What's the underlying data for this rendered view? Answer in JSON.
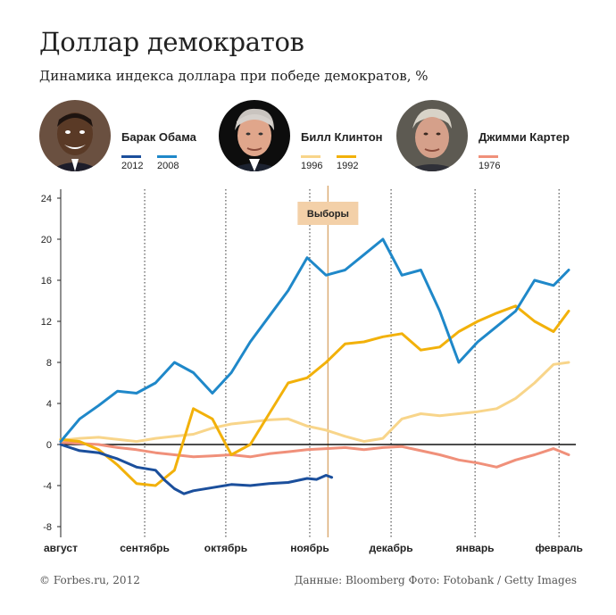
{
  "header": {
    "title": "Доллар демократов",
    "subtitle": "Динамика индекса доллара при победе демократов, %"
  },
  "people": [
    {
      "name": "Барак Обама",
      "photo": "obama-photo",
      "years": [
        {
          "label": "2012",
          "color": "#1b4f9c"
        },
        {
          "label": "2008",
          "color": "#1f88c9"
        }
      ]
    },
    {
      "name": "Билл Клинтон",
      "photo": "clinton-photo",
      "years": [
        {
          "label": "1996",
          "color": "#f8d58a"
        },
        {
          "label": "1992",
          "color": "#f2b10a"
        }
      ]
    },
    {
      "name": "Джимми Картер",
      "photo": "carter-photo",
      "years": [
        {
          "label": "1976",
          "color": "#f0907a"
        }
      ]
    }
  ],
  "footer": {
    "copyright": "© Forbes.ru, 2012",
    "source": "Данные: Bloomberg   Фото: Fotobank / Getty Images"
  },
  "chart_data": {
    "type": "line",
    "x_unit": "weeks since 1 Aug",
    "xlim": [
      0,
      26.8
    ],
    "ylim": [
      -8,
      24
    ],
    "yticks": [
      24,
      20,
      16,
      12,
      8,
      4,
      0,
      -4,
      -8
    ],
    "ytick_labels": [
      "24",
      "20",
      "16",
      "12",
      "8",
      "4",
      "0",
      "-4",
      "-8"
    ],
    "xticks": [
      {
        "label": "август",
        "x": 0
      },
      {
        "label": "сентябрь",
        "x": 4.43
      },
      {
        "label": "октябрь",
        "x": 8.71
      },
      {
        "label": "ноябрь",
        "x": 13.14
      },
      {
        "label": "декабрь",
        "x": 17.43
      },
      {
        "label": "январь",
        "x": 21.86
      },
      {
        "label": "февраль",
        "x": 26.29
      }
    ],
    "annotation": {
      "label": "Выборы",
      "x": 14.1
    },
    "series": [
      {
        "name": "1976",
        "color": "#f0907a",
        "x": [
          0,
          1,
          2,
          3,
          4,
          5,
          6,
          7,
          8,
          9,
          10,
          11,
          12,
          13,
          14,
          15,
          16,
          17,
          18,
          19,
          20,
          21,
          22,
          23,
          24,
          25,
          26,
          26.8
        ],
        "y": [
          0.2,
          0.1,
          0,
          -0.3,
          -0.5,
          -0.8,
          -1,
          -1.2,
          -1.1,
          -1,
          -1.2,
          -0.9,
          -0.7,
          -0.5,
          -0.4,
          -0.3,
          -0.5,
          -0.3,
          -0.2,
          -0.6,
          -1,
          -1.5,
          -1.8,
          -2.2,
          -1.5,
          -1,
          -0.4,
          -1
        ]
      },
      {
        "name": "1996",
        "color": "#f8d58a",
        "x": [
          0,
          1,
          2,
          3,
          4,
          5,
          6,
          7,
          8,
          9,
          10,
          11,
          12,
          13,
          14,
          15,
          16,
          17,
          18,
          19,
          20,
          21,
          22,
          23,
          24,
          25,
          26,
          26.8
        ],
        "y": [
          0.4,
          0.6,
          0.7,
          0.5,
          0.3,
          0.6,
          0.8,
          1,
          1.6,
          2,
          2.2,
          2.4,
          2.5,
          1.8,
          1.4,
          0.8,
          0.3,
          0.6,
          2.5,
          3,
          2.8,
          3,
          3.2,
          3.5,
          4.5,
          6,
          7.8,
          8
        ]
      },
      {
        "name": "1992",
        "color": "#f2b10a",
        "x": [
          0,
          1,
          2,
          3,
          4,
          5,
          6,
          7,
          8,
          9,
          10,
          11,
          12,
          13,
          14,
          15,
          16,
          17,
          18,
          19,
          20,
          21,
          22,
          23,
          24,
          25,
          26,
          26.8
        ],
        "y": [
          0.5,
          0.3,
          -0.5,
          -2,
          -3.8,
          -4,
          -2.5,
          3.5,
          2.5,
          -1,
          0,
          3,
          6,
          6.5,
          8,
          9.8,
          10,
          10.5,
          10.8,
          9.2,
          9.5,
          11,
          12,
          12.8,
          13.5,
          12,
          11,
          13
        ]
      },
      {
        "name": "2008",
        "color": "#1f88c9",
        "x": [
          0,
          1,
          2,
          3,
          4,
          5,
          6,
          7,
          8,
          9,
          10,
          11,
          12,
          13,
          14,
          15,
          16,
          17,
          18,
          19,
          20,
          21,
          22,
          23,
          24,
          25,
          26,
          26.8
        ],
        "y": [
          0.3,
          2.5,
          3.8,
          5.2,
          5,
          6,
          8,
          7,
          5,
          7,
          10,
          12.5,
          15,
          18.2,
          16.5,
          17,
          18.5,
          20,
          16.5,
          17,
          13,
          8,
          10,
          11.5,
          13,
          16,
          15.5,
          17
        ]
      },
      {
        "name": "2012",
        "color": "#1b4f9c",
        "x": [
          0,
          1,
          2,
          3,
          4,
          5,
          5.5,
          6,
          6.5,
          7,
          8,
          9,
          10,
          11,
          12,
          13,
          13.5,
          14,
          14.3
        ],
        "y": [
          0,
          -0.6,
          -0.8,
          -1.4,
          -2.2,
          -2.5,
          -3.5,
          -4.3,
          -4.8,
          -4.5,
          -4.2,
          -3.9,
          -4,
          -3.8,
          -3.7,
          -3.3,
          -3.4,
          -3,
          -3.2
        ]
      }
    ]
  }
}
